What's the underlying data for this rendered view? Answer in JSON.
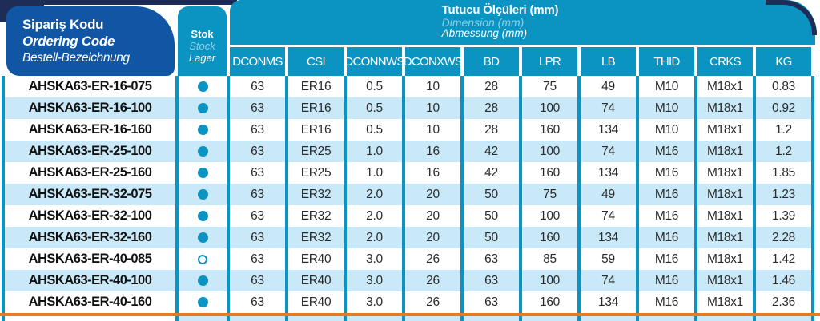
{
  "header": {
    "ordering_code": {
      "tr": "Sipariş Kodu",
      "en": "Ordering Code",
      "de": "Bestell-Bezeichnung"
    },
    "stock": {
      "tr": "Stok",
      "en": "Stock",
      "de": "Lager"
    },
    "dimensions": {
      "tr": "Tutucu Ölçüleri (mm)",
      "en": "Dimension (mm)",
      "de": "Abmessung (mm)"
    },
    "columns": [
      "DCONMS",
      "CSI",
      "DCONNWS",
      "DCONXWS",
      "BD",
      "LPR",
      "LB",
      "THID",
      "CRKS",
      "KG"
    ]
  },
  "rows": [
    {
      "code": "AHSKA63-ER-16-075",
      "stock": "filled",
      "values": [
        "63",
        "ER16",
        "0.5",
        "10",
        "28",
        "75",
        "49",
        "M10",
        "M18x1",
        "0.83"
      ]
    },
    {
      "code": "AHSKA63-ER-16-100",
      "stock": "filled",
      "values": [
        "63",
        "ER16",
        "0.5",
        "10",
        "28",
        "100",
        "74",
        "M10",
        "M18x1",
        "0.92"
      ]
    },
    {
      "code": "AHSKA63-ER-16-160",
      "stock": "filled",
      "values": [
        "63",
        "ER16",
        "0.5",
        "10",
        "28",
        "160",
        "134",
        "M10",
        "M18x1",
        "1.2"
      ]
    },
    {
      "code": "AHSKA63-ER-25-100",
      "stock": "filled",
      "values": [
        "63",
        "ER25",
        "1.0",
        "16",
        "42",
        "100",
        "74",
        "M16",
        "M18x1",
        "1.2"
      ]
    },
    {
      "code": "AHSKA63-ER-25-160",
      "stock": "filled",
      "values": [
        "63",
        "ER25",
        "1.0",
        "16",
        "42",
        "160",
        "134",
        "M16",
        "M18x1",
        "1.85"
      ]
    },
    {
      "code": "AHSKA63-ER-32-075",
      "stock": "filled",
      "values": [
        "63",
        "ER32",
        "2.0",
        "20",
        "50",
        "75",
        "49",
        "M16",
        "M18x1",
        "1.23"
      ]
    },
    {
      "code": "AHSKA63-ER-32-100",
      "stock": "filled",
      "values": [
        "63",
        "ER32",
        "2.0",
        "20",
        "50",
        "100",
        "74",
        "M16",
        "M18x1",
        "1.39"
      ]
    },
    {
      "code": "AHSKA63-ER-32-160",
      "stock": "filled",
      "values": [
        "63",
        "ER32",
        "2.0",
        "20",
        "50",
        "160",
        "134",
        "M16",
        "M18x1",
        "2.28"
      ]
    },
    {
      "code": "AHSKA63-ER-40-085",
      "stock": "open",
      "values": [
        "63",
        "ER40",
        "3.0",
        "26",
        "63",
        "85",
        "59",
        "M16",
        "M18x1",
        "1.42"
      ]
    },
    {
      "code": "AHSKA63-ER-40-100",
      "stock": "filled",
      "values": [
        "63",
        "ER40",
        "3.0",
        "26",
        "63",
        "100",
        "74",
        "M16",
        "M18x1",
        "1.46"
      ]
    },
    {
      "code": "AHSKA63-ER-40-160",
      "stock": "filled",
      "values": [
        "63",
        "ER40",
        "3.0",
        "26",
        "63",
        "160",
        "134",
        "M16",
        "M18x1",
        "2.36"
      ]
    }
  ],
  "colors": {
    "navy": "#1e2d58",
    "blue": "#1156a4",
    "teal": "#0b93c1",
    "row_alt": "#c9e9f9",
    "light_blue_text": "#8fd0e6",
    "orange": "#e8791d"
  }
}
